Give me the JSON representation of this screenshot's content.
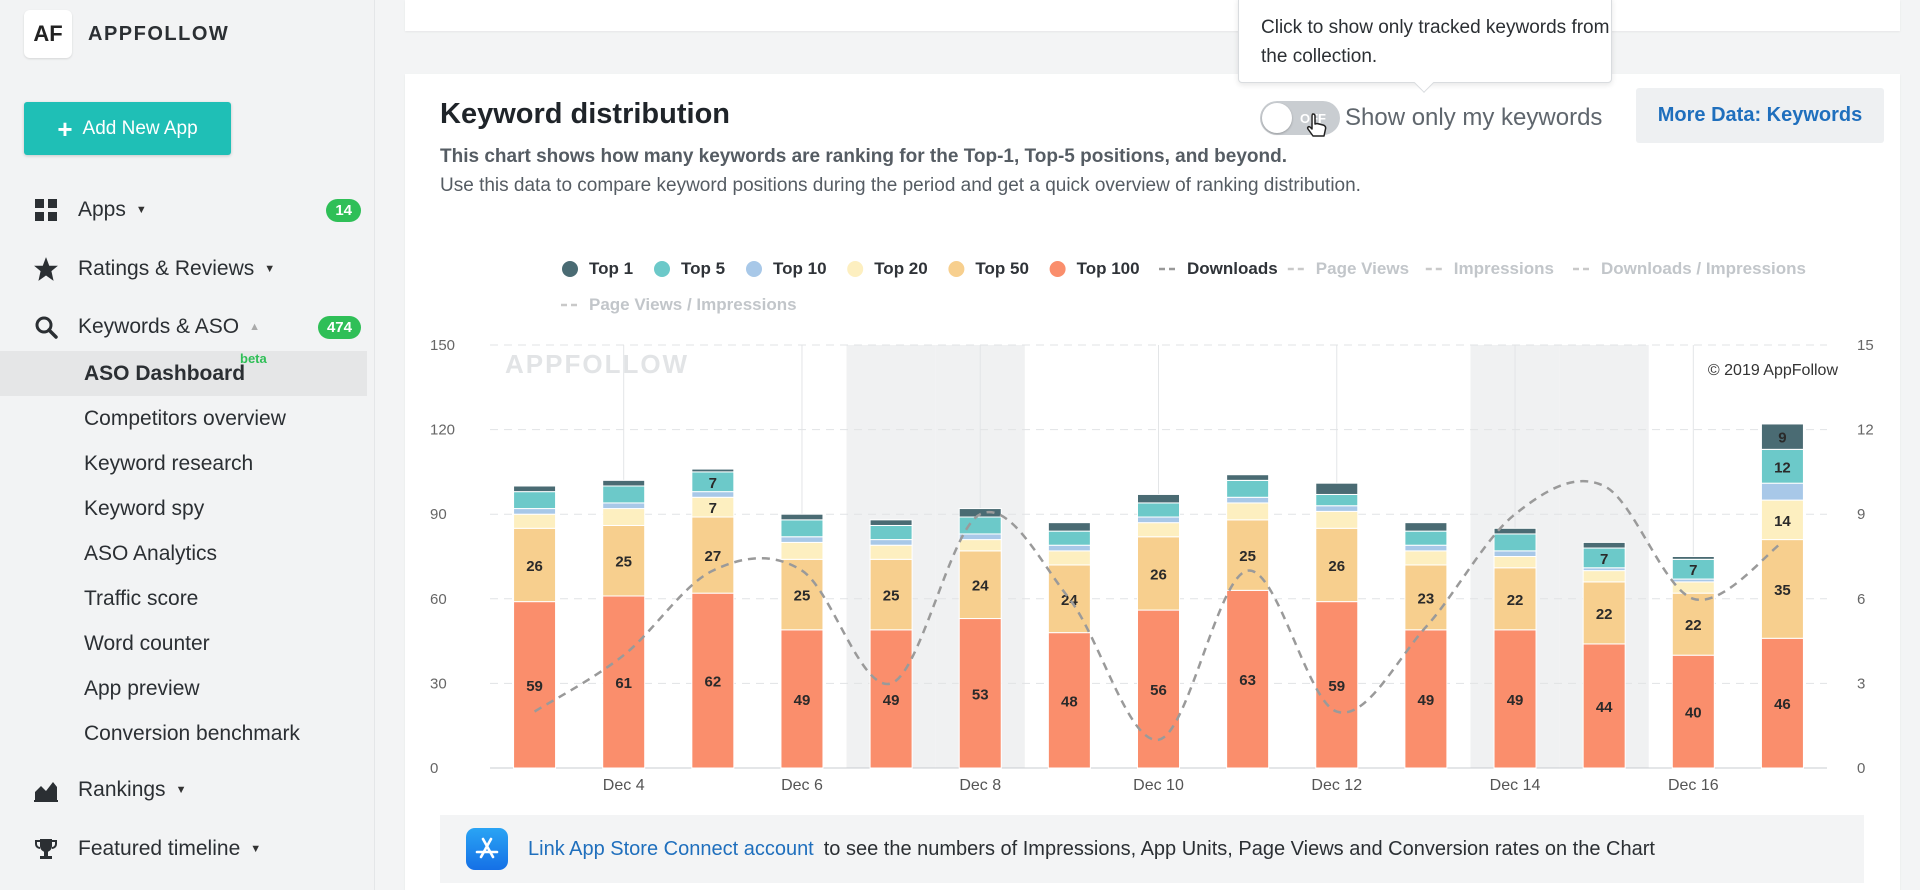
{
  "logo": {
    "mark": "AF",
    "name": "APPFOLLOW"
  },
  "add_app_label": "Add New App",
  "nav": {
    "apps": {
      "label": "Apps",
      "badge": "14"
    },
    "ratings": {
      "label": "Ratings & Reviews"
    },
    "keywords": {
      "label": "Keywords & ASO",
      "badge": "474"
    },
    "sub_items": [
      {
        "label": "ASO Dashboard",
        "beta": "beta"
      },
      {
        "label": "Competitors overview"
      },
      {
        "label": "Keyword research"
      },
      {
        "label": "Keyword spy"
      },
      {
        "label": "ASO Analytics"
      },
      {
        "label": "Traffic score"
      },
      {
        "label": "Word counter"
      },
      {
        "label": "App preview"
      },
      {
        "label": "Conversion benchmark"
      }
    ],
    "rankings": {
      "label": "Rankings"
    },
    "featured": {
      "label": "Featured timeline"
    }
  },
  "card": {
    "title": "Keyword distribution",
    "desc_bold": "This chart shows how many keywords are ranking for the Top-1, Top-5 positions, and beyond.",
    "desc": "Use this data to compare keyword positions during the period and get a quick overview of ranking distribution.",
    "toggle_state": "OFF",
    "toggle_label": "Show only my keywords",
    "more_data_label": "More Data: Keywords",
    "tooltip": "Click to show only tracked keywords from the collection.",
    "link_text": "Link App Store Connect account",
    "link_suffix": "to see the numbers of Impressions, App Units, Page Views and Conversion rates on the Chart"
  },
  "chart_data": {
    "type": "bar",
    "stacked": true,
    "watermark": "APPFOLLOW",
    "copyright": "© 2019 AppFollow",
    "ylim": [
      0,
      150
    ],
    "y2lim": [
      0,
      15
    ],
    "y_ticks": [
      0,
      30,
      60,
      90,
      120,
      150
    ],
    "y2_ticks": [
      0,
      3,
      6,
      9,
      12,
      15
    ],
    "x_tick_labels": [
      "Dec 4",
      "Dec 6",
      "Dec 8",
      "Dec 10",
      "Dec 12",
      "Dec 14",
      "Dec 16"
    ],
    "x_tick_indices": [
      1,
      3,
      5,
      7,
      9,
      11,
      13
    ],
    "weekend_indices": [
      4,
      5,
      11,
      12
    ],
    "legend": [
      {
        "name": "Top 1",
        "color": "#4a6b73",
        "kind": "dot"
      },
      {
        "name": "Top 5",
        "color": "#6cc9c9",
        "kind": "dot"
      },
      {
        "name": "Top 10",
        "color": "#a8c8e8",
        "kind": "dot"
      },
      {
        "name": "Top 20",
        "color": "#fdefc0",
        "kind": "dot"
      },
      {
        "name": "Top 50",
        "color": "#f7cf8e",
        "kind": "dot"
      },
      {
        "name": "Top 100",
        "color": "#fa8e6c",
        "kind": "dot"
      },
      {
        "name": "Downloads",
        "color": "#999999",
        "kind": "dash",
        "active": true
      },
      {
        "name": "Page Views",
        "color": "#cccccc",
        "kind": "dash",
        "active": false
      },
      {
        "name": "Impressions",
        "color": "#cccccc",
        "kind": "dash",
        "active": false
      },
      {
        "name": "Downloads / Impressions",
        "color": "#cccccc",
        "kind": "dash",
        "active": false
      },
      {
        "name": "Page Views / Impressions",
        "color": "#cccccc",
        "kind": "dash",
        "active": false
      }
    ],
    "series": [
      {
        "name": "Top 100",
        "color": "#fa8e6c",
        "values": [
          59,
          61,
          62,
          49,
          49,
          53,
          48,
          56,
          63,
          59,
          49,
          49,
          44,
          40,
          46
        ]
      },
      {
        "name": "Top 50",
        "color": "#f7cf8e",
        "values": [
          26,
          25,
          27,
          25,
          25,
          24,
          24,
          26,
          25,
          26,
          23,
          22,
          22,
          22,
          35
        ]
      },
      {
        "name": "Top 20",
        "color": "#fdefc0",
        "values": [
          5,
          6,
          7,
          6,
          5,
          4,
          5,
          5,
          6,
          6,
          5,
          4,
          4,
          4,
          14
        ]
      },
      {
        "name": "Top 10",
        "color": "#a8c8e8",
        "values": [
          2,
          2,
          2,
          2,
          2,
          2,
          2,
          2,
          2,
          2,
          2,
          2,
          1,
          1,
          6
        ]
      },
      {
        "name": "Top 5",
        "color": "#6cc9c9",
        "values": [
          6,
          6,
          7,
          6,
          5,
          6,
          5,
          5,
          6,
          4,
          5,
          6,
          7,
          7,
          12
        ]
      },
      {
        "name": "Top 1",
        "color": "#4a6b73",
        "values": [
          2,
          2,
          1,
          2,
          2,
          3,
          3,
          3,
          2,
          4,
          3,
          2,
          2,
          1,
          9
        ]
      }
    ],
    "downloads": [
      2,
      4,
      7,
      7,
      3,
      9,
      6,
      1,
      7,
      2,
      5,
      9,
      10,
      6,
      8
    ],
    "labeled_threshold": 7
  }
}
